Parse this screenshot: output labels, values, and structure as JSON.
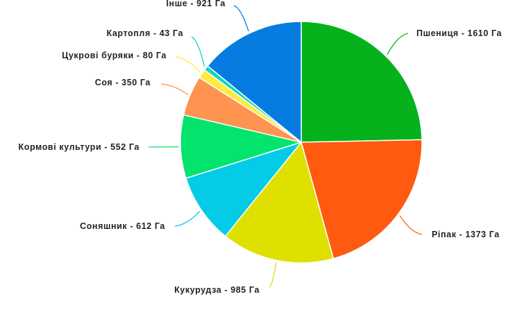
{
  "chart_data": {
    "type": "pie",
    "unit": "Га",
    "slices": [
      {
        "name": "Пшениця",
        "value": 1610,
        "label": "Пшениця - 1610 Га",
        "color": "#05b21c"
      },
      {
        "name": "Ріпак",
        "value": 1373,
        "label": "Ріпак - 1373 Га",
        "color": "#ff5a10"
      },
      {
        "name": "Кукурудза",
        "value": 985,
        "label": "Кукурудза - 985 Га",
        "color": "#dfe000"
      },
      {
        "name": "Соняшник",
        "value": 612,
        "label": "Соняшник - 612 Га",
        "color": "#04cbe6"
      },
      {
        "name": "Кормові культури",
        "value": 552,
        "label": "Кормові культури - 552 Га",
        "color": "#04e46c"
      },
      {
        "name": "Соя",
        "value": 350,
        "label": "Соя - 350 Га",
        "color": "#ff9350"
      },
      {
        "name": "Цукрові буряки",
        "value": 80,
        "label": "Цукрові буряки - 80 Га",
        "color": "#ffeb40"
      },
      {
        "name": "Картопля",
        "value": 43,
        "label": "Картопля - 43 Га",
        "color": "#10d6c0"
      },
      {
        "name": "Інше",
        "value": 921,
        "label": "Інше - 921 Га",
        "color": "#067ce0"
      }
    ]
  }
}
